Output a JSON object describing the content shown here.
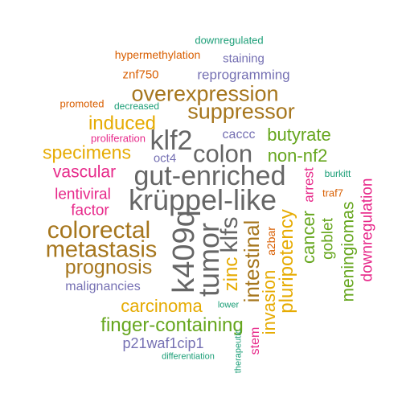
{
  "words": [
    {
      "text": "downregulated",
      "color": "#1b9e77"
    },
    {
      "text": "hypermethylation",
      "color": "#d95f02"
    },
    {
      "text": "staining",
      "color": "#7570b3"
    },
    {
      "text": "znf750",
      "color": "#d95f02"
    },
    {
      "text": "reprogramming",
      "color": "#7570b3"
    },
    {
      "text": "overexpression",
      "color": "#a6761d"
    },
    {
      "text": "promoted",
      "color": "#d95f02"
    },
    {
      "text": "decreased",
      "color": "#1b9e77"
    },
    {
      "text": "suppressor",
      "color": "#a6761d"
    },
    {
      "text": "induced",
      "color": "#e6ab02"
    },
    {
      "text": "proliferation",
      "color": "#e7298a"
    },
    {
      "text": "caccc",
      "color": "#7570b3"
    },
    {
      "text": "klf2",
      "color": "#666666"
    },
    {
      "text": "butyrate",
      "color": "#66a61e"
    },
    {
      "text": "specimens",
      "color": "#e6ab02"
    },
    {
      "text": "colon",
      "color": "#666666"
    },
    {
      "text": "non-nf2",
      "color": "#66a61e"
    },
    {
      "text": "oct4",
      "color": "#7570b3"
    },
    {
      "text": "vascular",
      "color": "#e7298a"
    },
    {
      "text": "gut-enriched",
      "color": "#666666"
    },
    {
      "text": "burkitt",
      "color": "#1b9e77"
    },
    {
      "text": "lentiviral",
      "color": "#e7298a"
    },
    {
      "text": "krüppel-like",
      "color": "#666666"
    },
    {
      "text": "traf7",
      "color": "#d95f02"
    },
    {
      "text": "factor",
      "color": "#e7298a"
    },
    {
      "text": "colorectal",
      "color": "#a6761d"
    },
    {
      "text": "metastasis",
      "color": "#a6761d"
    },
    {
      "text": "prognosis",
      "color": "#a6761d"
    },
    {
      "text": "malignancies",
      "color": "#7570b3"
    },
    {
      "text": "carcinoma",
      "color": "#e6ab02"
    },
    {
      "text": "lower",
      "color": "#1b9e77"
    },
    {
      "text": "finger-containing",
      "color": "#66a61e"
    },
    {
      "text": "p21waf1cip1",
      "color": "#7570b3"
    },
    {
      "text": "differentiation",
      "color": "#1b9e77"
    },
    {
      "text": "k409q",
      "color": "#666666"
    },
    {
      "text": "tumor",
      "color": "#666666"
    },
    {
      "text": "klfs",
      "color": "#666666"
    },
    {
      "text": "zinc",
      "color": "#e6ab02"
    },
    {
      "text": "intestinal",
      "color": "#a6761d"
    },
    {
      "text": "invasion",
      "color": "#e6ab02"
    },
    {
      "text": "a2bar",
      "color": "#d95f02"
    },
    {
      "text": "pluripotency",
      "color": "#e6ab02"
    },
    {
      "text": "cancer",
      "color": "#66a61e"
    },
    {
      "text": "arrest",
      "color": "#e7298a"
    },
    {
      "text": "goblet",
      "color": "#66a61e"
    },
    {
      "text": "meningiomas",
      "color": "#66a61e"
    },
    {
      "text": "downregulation",
      "color": "#e7298a"
    },
    {
      "text": "stem",
      "color": "#e7298a"
    },
    {
      "text": "therapeutic",
      "color": "#1b9e77"
    }
  ]
}
